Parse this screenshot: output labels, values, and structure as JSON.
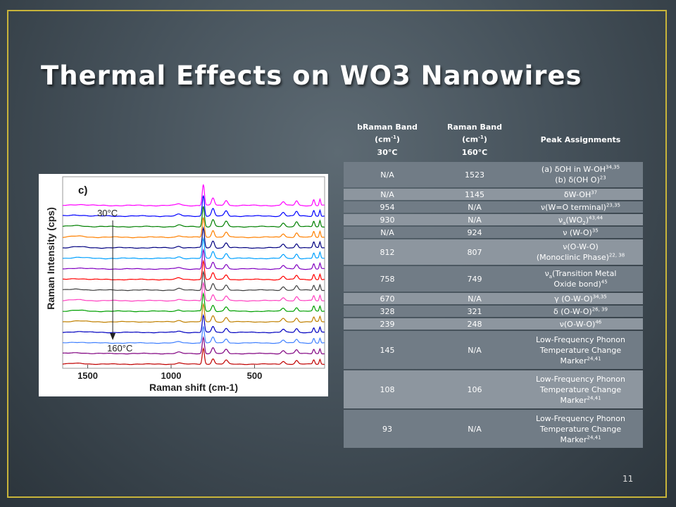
{
  "slide": {
    "title": "Thermal Effects on WO3 Nanowires",
    "page_number": "11"
  },
  "table": {
    "headers": {
      "col1_line1": "bRaman Band",
      "col1_line2": "(cm",
      "col1_line2_sup": "-1",
      "col1_line2_end": ")",
      "col1_line3": "30°C",
      "col2_line1": "Raman Band",
      "col2_line2": "(cm",
      "col2_line2_sup": "-1",
      "col2_line2_end": ")",
      "col2_line3": "160°C",
      "col3": "Peak Assignments"
    },
    "rows": [
      {
        "band30": "N/A",
        "band160": "1523",
        "assign_lines": [
          {
            "text": "(a) δOH in W-OH",
            "sup": "34,35"
          },
          {
            "text": "(b) δ(OH O)",
            "sup": "23"
          }
        ]
      },
      {
        "band30": "N/A",
        "band160": "1145",
        "assign_lines": [
          {
            "text": "δW-OH",
            "sup": "37"
          }
        ]
      },
      {
        "band30": "954",
        "band160": "N/A",
        "assign_lines": [
          {
            "text": "ν(W=O terminal)",
            "sup": "23,35"
          }
        ]
      },
      {
        "band30": "930",
        "band160": "N/A",
        "assign_lines": [
          {
            "text": "ν",
            "sub": "a",
            "text2": "(WO",
            "sub2": "2",
            "text3": ")",
            "sup": "43,44"
          }
        ]
      },
      {
        "band30": "N/A",
        "band160": "924",
        "assign_lines": [
          {
            "text": "ν (W-O)",
            "sup": "35"
          }
        ]
      },
      {
        "band30": "812",
        "band160": "807",
        "assign_lines": [
          {
            "text": "ν(O-W-O)"
          },
          {
            "text": "(Monoclinic Phase)",
            "sup": "22, 38"
          }
        ]
      },
      {
        "band30": "758",
        "band160": "749",
        "assign_lines": [
          {
            "text": "ν",
            "sub": "a",
            "text2": "(Transition Metal"
          },
          {
            "text": "Oxide bond)",
            "sup": "45"
          }
        ]
      },
      {
        "band30": "670",
        "band160": "N/A",
        "assign_lines": [
          {
            "text": "γ (O-W-O)",
            "sup": "34,35"
          }
        ]
      },
      {
        "band30": "328",
        "band160": "321",
        "assign_lines": [
          {
            "text": "δ (O-W-O)",
            "sup": "26, 39"
          }
        ]
      },
      {
        "band30": "239",
        "band160": "248",
        "assign_lines": [
          {
            "text": "ν(O-W-O)",
            "sup": "46"
          }
        ]
      },
      {
        "band30": "145",
        "band160": "N/A",
        "assign_lines": [
          {
            "text": "Low-Frequency Phonon"
          },
          {
            "text": "Temperature Change"
          },
          {
            "text": "Marker",
            "sup": "24,41"
          }
        ]
      },
      {
        "band30": "108",
        "band160": "106",
        "assign_lines": [
          {
            "text": "Low-Frequency Phonon"
          },
          {
            "text": "Temperature Change"
          },
          {
            "text": "Marker",
            "sup": "24,41"
          }
        ]
      },
      {
        "band30": "93",
        "band160": "N/A",
        "assign_lines": [
          {
            "text": "Low-Frequency Phonon"
          },
          {
            "text": "Temperature Change"
          },
          {
            "text": "Marker",
            "sup": "24,41"
          }
        ]
      }
    ]
  },
  "chart_data": {
    "type": "line",
    "panel_label": "c)",
    "xlabel": "Raman shift (cm-1)",
    "ylabel": "Raman Intensity (cps)",
    "x_tick_labels": [
      "1500",
      "1000",
      "500"
    ],
    "x_ticks": [
      1500,
      1000,
      500
    ],
    "xlim": [
      1650,
      80
    ],
    "annotation_top": "30°C",
    "annotation_bottom": "160°C",
    "series_colors": [
      "#ff00ff",
      "#0000ff",
      "#008000",
      "#ff8000",
      "#000080",
      "#00a0ff",
      "#8000c0",
      "#ff0000",
      "#404040",
      "#ff40c0",
      "#00a000",
      "#c08000",
      "#0000c0",
      "#4080ff",
      "#800080",
      "#c00000"
    ],
    "series_count": 16,
    "peaks_cm": [
      1523,
      1145,
      954,
      930,
      807,
      749,
      670,
      328,
      248,
      145,
      108,
      93
    ],
    "colors": {
      "frame": "#c8b43a",
      "row_dark": "#717c86",
      "row_light": "#8d969f"
    }
  }
}
